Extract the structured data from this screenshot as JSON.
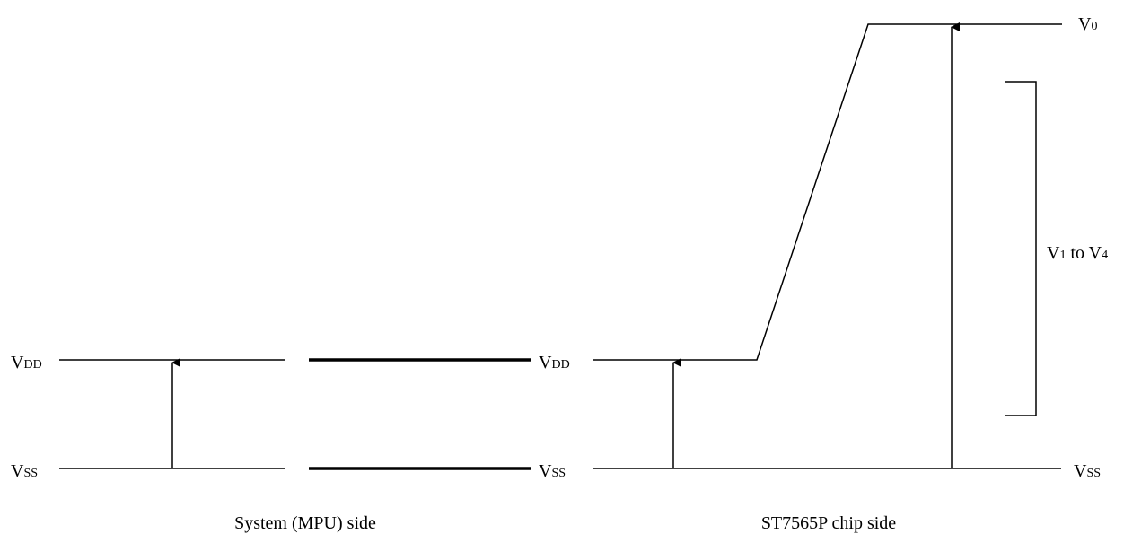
{
  "labels": {
    "vdd": "V",
    "vdd_sub": "DD",
    "vss": "V",
    "vss_sub": "SS",
    "v0": "V",
    "v0_sub": "0",
    "v1to4_prefix": "V",
    "v1_sub": "1",
    "v1to4_middle": " to V",
    "v4_sub": "4"
  },
  "captions": {
    "mpu_side": "System (MPU) side",
    "chip_side": "ST7565P chip side"
  },
  "colors": {
    "line": "#000000",
    "background": "#ffffff"
  }
}
